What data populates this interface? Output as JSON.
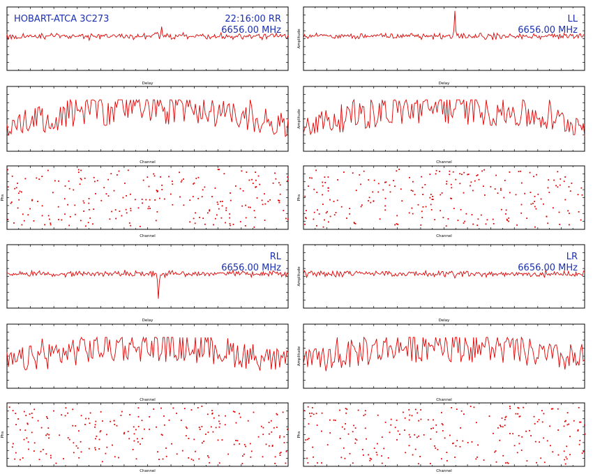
{
  "header": {
    "title": "HOBART-ATCA 3C273",
    "time": "22:16:00",
    "frequency": "6656.00 MHz"
  },
  "colors": {
    "trace": "#e00000",
    "annotation": "#1a2fb0",
    "axis": "#000000"
  },
  "chart_data": [
    {
      "type": "line",
      "panel": "delay",
      "polarization": "RR",
      "xlabel": "Delay",
      "ylabel": "",
      "series": [
        {
          "spikes": [
            {
              "x": 0.55,
              "height": 0.35
            }
          ]
        }
      ]
    },
    {
      "type": "line",
      "panel": "amplitude",
      "polarization": "RR",
      "xlabel": "Channel",
      "ylabel": ""
    },
    {
      "type": "scatter",
      "panel": "phase",
      "polarization": "RR",
      "xlabel": "Channel",
      "ylabel": "Phs"
    },
    {
      "type": "line",
      "panel": "delay",
      "polarization": "LL",
      "xlabel": "Delay",
      "ylabel": "Amplitude",
      "series": [
        {
          "spikes": [
            {
              "x": 0.54,
              "height": 1.0
            }
          ]
        }
      ]
    },
    {
      "type": "line",
      "panel": "amplitude",
      "polarization": "LL",
      "xlabel": "Channel",
      "ylabel": "Amplitude"
    },
    {
      "type": "scatter",
      "panel": "phase",
      "polarization": "LL",
      "xlabel": "Channel",
      "ylabel": "Phs"
    },
    {
      "type": "line",
      "panel": "delay",
      "polarization": "RL",
      "xlabel": "Delay",
      "ylabel": "",
      "series": [
        {
          "spikes": [
            {
              "x": 0.54,
              "height": -1.0
            }
          ]
        }
      ]
    },
    {
      "type": "line",
      "panel": "amplitude",
      "polarization": "RL",
      "xlabel": "Channel",
      "ylabel": ""
    },
    {
      "type": "scatter",
      "panel": "phase",
      "polarization": "RL",
      "xlabel": "Channel",
      "ylabel": "Phs"
    },
    {
      "type": "line",
      "panel": "delay",
      "polarization": "LR",
      "xlabel": "Delay",
      "ylabel": "Amplitude",
      "series": [
        {
          "spikes": [
            {
              "x": 0.54,
              "height": -0.2
            }
          ]
        }
      ]
    },
    {
      "type": "line",
      "panel": "amplitude",
      "polarization": "LR",
      "xlabel": "Channel",
      "ylabel": "Amplitude"
    },
    {
      "type": "scatter",
      "panel": "phase",
      "polarization": "LR",
      "xlabel": "Channel",
      "ylabel": "Phs"
    }
  ]
}
